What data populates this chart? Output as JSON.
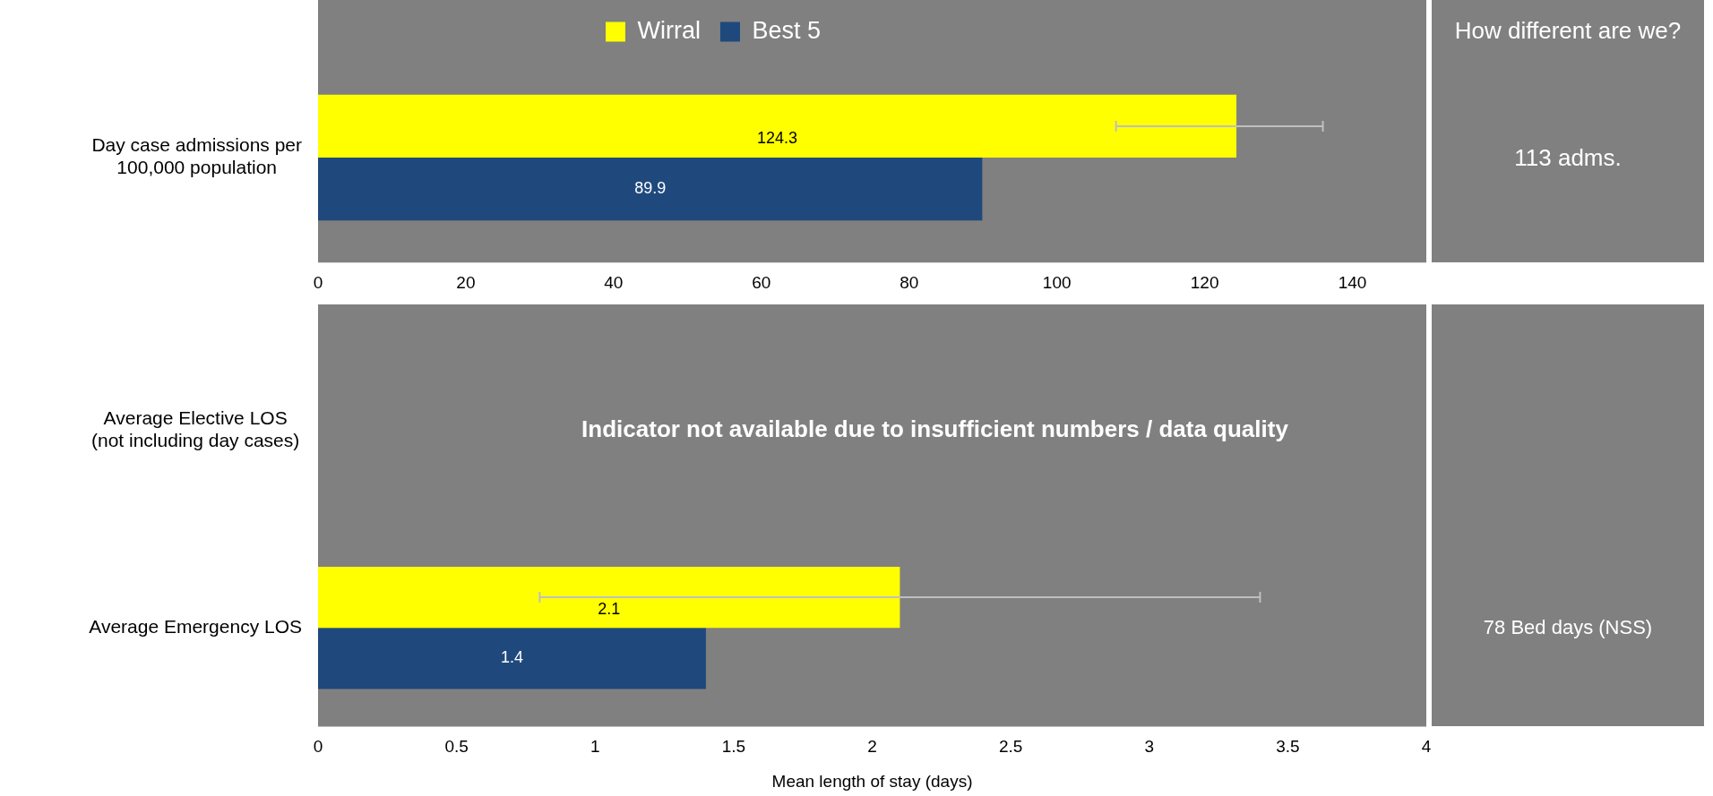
{
  "chart_data": [
    {
      "type": "bar",
      "orientation": "horizontal",
      "categories": [
        "Day case admissions per\n100,000 population"
      ],
      "series": [
        {
          "name": "Wirral",
          "color": "#ffff00",
          "values": [
            124.3
          ],
          "errors": [
            [
              108,
              136
            ]
          ]
        },
        {
          "name": "Best 5",
          "color": "#1f497d",
          "values": [
            89.9
          ]
        }
      ],
      "xlim": [
        0,
        150
      ],
      "xticks": [
        0,
        20,
        40,
        60,
        80,
        100,
        120,
        140
      ],
      "data_labels": true,
      "legend": "top",
      "grid": false,
      "annotations": [
        "How different are we?",
        "113 adms."
      ]
    },
    {
      "type": "bar",
      "orientation": "horizontal",
      "categories": [
        "Average Elective LOS\n(not including day cases)",
        "Average Emergency LOS"
      ],
      "series": [
        {
          "color": "#ffff00",
          "values": [
            null,
            2.1
          ],
          "errors": [
            null,
            [
              0.8,
              3.4
            ]
          ]
        },
        {
          "color": "#1f497d",
          "values": [
            null,
            1.4
          ]
        }
      ],
      "xlim": [
        0,
        4
      ],
      "xticks": [
        0,
        0.5,
        1,
        1.5,
        2,
        2.5,
        3,
        3.5,
        4
      ],
      "xlabel": "Mean length of stay (days)",
      "data_labels": true,
      "legend": false,
      "grid": false,
      "annotations": [
        "Indicator not available due to insufficient numbers / data quality",
        "78 Bed days (NSS)"
      ]
    }
  ]
}
